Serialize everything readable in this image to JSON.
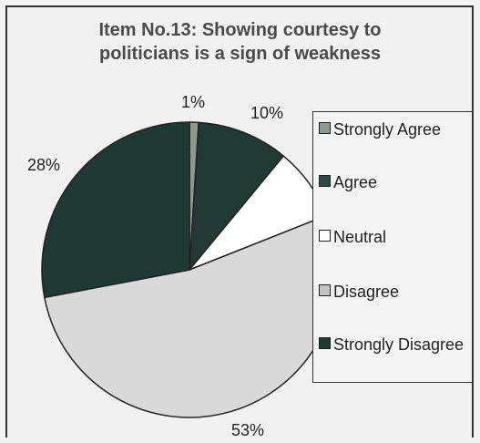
{
  "chart_data": {
    "type": "pie",
    "title": "Item No.13: Showing courtesy to politicians is a sign of weakness",
    "title_lines": [
      "Item No.13: Showing courtesy to",
      "politicians is a sign of weakness"
    ],
    "categories": [
      "Strongly Agree",
      "Agree",
      "Neutral",
      "Disagree",
      "Strongly Disagree"
    ],
    "values": [
      1,
      10,
      8,
      53,
      28
    ],
    "labels": [
      "1%",
      "10%",
      "",
      "53%",
      "28%"
    ],
    "colors": [
      "#8a9a8e",
      "#233a34",
      "#ffffff",
      "#d9d9d9",
      "#1f3a34"
    ],
    "legend_position": "right"
  },
  "legend": {
    "items": [
      {
        "label": "Strongly Agree",
        "color": "#8a9a8e"
      },
      {
        "label": "Agree",
        "color": "#2f4a44"
      },
      {
        "label": "Neutral",
        "color": "#ffffff"
      },
      {
        "label": "Disagree",
        "color": "#c4c4c4"
      },
      {
        "label": "Strongly Disagree",
        "color": "#1f3a34"
      }
    ]
  }
}
